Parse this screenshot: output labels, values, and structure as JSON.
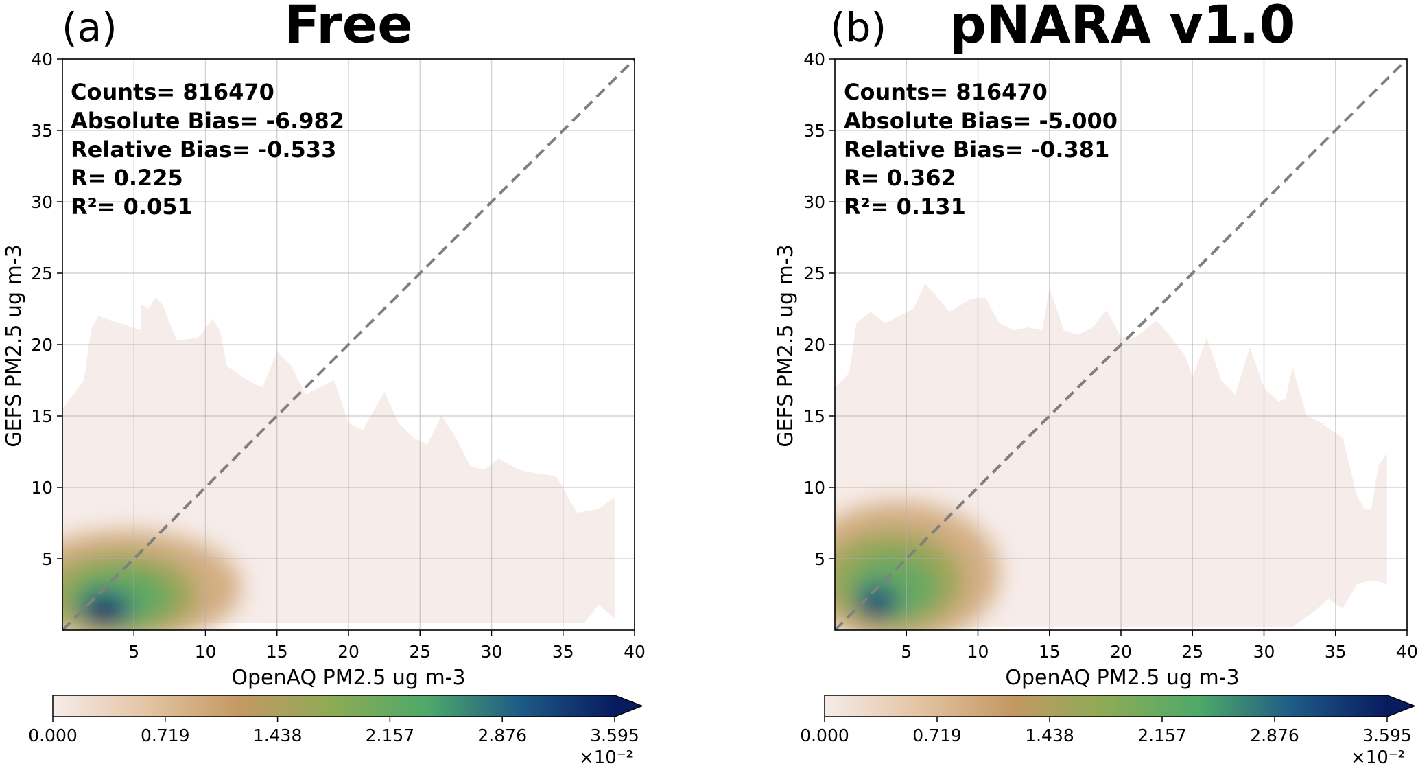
{
  "figure": {
    "colormap": [
      "#f6ece9",
      "#e3c4a3",
      "#c49863",
      "#8cab55",
      "#4ea86a",
      "#1e5a86",
      "#081b5f"
    ],
    "colorbar_ticks": [
      "0.000",
      "0.719",
      "1.438",
      "2.157",
      "2.876",
      "3.595"
    ],
    "colorbar_multiplier": "×10⁻²",
    "diag_color": "#808080"
  },
  "chart_data": [
    {
      "type": "heatmap",
      "panel_label": "(a)",
      "title": "Free",
      "xlabel": "OpenAQ PM2.5 ug m-3",
      "ylabel": "GEFS PM2.5 ug m-3",
      "xlim": [
        0,
        40
      ],
      "ylim": [
        0,
        40
      ],
      "xticks": [
        5,
        10,
        15,
        20,
        25,
        30,
        35,
        40
      ],
      "yticks": [
        5,
        10,
        15,
        20,
        25,
        30,
        35,
        40
      ],
      "grid": true,
      "one_to_one_line": true,
      "colorbar_range": [
        0,
        3.595
      ],
      "stats": [
        "Counts= 816470",
        "Absolute Bias= -6.982",
        "Relative Bias= -0.533",
        "R= 0.225",
        "R²= 0.051"
      ],
      "density_outline": [
        [
          0,
          15.5
        ],
        [
          1.5,
          17.5
        ],
        [
          2,
          21
        ],
        [
          2.5,
          22
        ],
        [
          4,
          21.5
        ],
        [
          5.5,
          21
        ],
        [
          5.5,
          22.8
        ],
        [
          6,
          22.5
        ],
        [
          6.5,
          23.3
        ],
        [
          7,
          22.8
        ],
        [
          7.5,
          21.5
        ],
        [
          8,
          20.3
        ],
        [
          9,
          20.4
        ],
        [
          9.5,
          20.5
        ],
        [
          10.5,
          21.8
        ],
        [
          11,
          21
        ],
        [
          11.5,
          18.5
        ],
        [
          12.5,
          17.8
        ],
        [
          13.5,
          17.2
        ],
        [
          14,
          17
        ],
        [
          15,
          19.5
        ],
        [
          16,
          18.5
        ],
        [
          17,
          16.5
        ],
        [
          18,
          17
        ],
        [
          19,
          17.5
        ],
        [
          20,
          14.5
        ],
        [
          21,
          14
        ],
        [
          22.5,
          16.7
        ],
        [
          23.5,
          14.5
        ],
        [
          24.5,
          13.5
        ],
        [
          25.5,
          13
        ],
        [
          26.5,
          15
        ],
        [
          27.5,
          13.5
        ],
        [
          28.5,
          11.5
        ],
        [
          29.5,
          11.2
        ],
        [
          30.5,
          12
        ],
        [
          32,
          11.2
        ],
        [
          33,
          11
        ],
        [
          34.5,
          10.8
        ],
        [
          35,
          10
        ],
        [
          35.5,
          9
        ],
        [
          36,
          8.2
        ],
        [
          37.5,
          8.5
        ],
        [
          38.6,
          9.3
        ],
        [
          38.6,
          0.8
        ],
        [
          37.5,
          1.8
        ],
        [
          36.5,
          0.5
        ],
        [
          0,
          0.5
        ]
      ],
      "density_cores": [
        {
          "x": 4.5,
          "y": 3.0,
          "rx": 8,
          "ry": 4,
          "level": 0.25
        },
        {
          "x": 4.0,
          "y": 2.5,
          "rx": 5.5,
          "ry": 3,
          "level": 0.45
        },
        {
          "x": 4.0,
          "y": 2.3,
          "rx": 3.6,
          "ry": 2,
          "level": 0.62
        },
        {
          "x": 3.0,
          "y": 1.5,
          "rx": 1.8,
          "ry": 1.2,
          "level": 0.85
        },
        {
          "x": 2.8,
          "y": 1.2,
          "rx": 0.8,
          "ry": 0.8,
          "level": 1.0
        }
      ]
    },
    {
      "type": "heatmap",
      "panel_label": "(b)",
      "title": "pNARA v1.0",
      "xlabel": "OpenAQ PM2.5 ug m-3",
      "ylabel": "GEFS PM2.5 ug m-3",
      "xlim": [
        0,
        40
      ],
      "ylim": [
        0,
        40
      ],
      "xticks": [
        5,
        10,
        15,
        20,
        25,
        30,
        35,
        40
      ],
      "yticks": [
        5,
        10,
        15,
        20,
        25,
        30,
        35,
        40
      ],
      "grid": true,
      "one_to_one_line": true,
      "colorbar_range": [
        0,
        3.595
      ],
      "stats": [
        "Counts= 816470",
        "Absolute Bias= -5.000",
        "Relative Bias= -0.381",
        "R= 0.362",
        "R²= 0.131"
      ],
      "density_outline": [
        [
          0,
          17
        ],
        [
          1,
          18
        ],
        [
          1.5,
          21.5
        ],
        [
          2.5,
          22.3
        ],
        [
          3.5,
          21.5
        ],
        [
          4.5,
          22
        ],
        [
          5.5,
          22.5
        ],
        [
          6.3,
          24.3
        ],
        [
          7,
          23.5
        ],
        [
          8,
          22.3
        ],
        [
          9.5,
          23.2
        ],
        [
          10.5,
          23.3
        ],
        [
          11.5,
          21.5
        ],
        [
          12.5,
          21
        ],
        [
          13.5,
          21.2
        ],
        [
          14.5,
          21
        ],
        [
          15,
          24
        ],
        [
          16,
          21
        ],
        [
          17,
          20.7
        ],
        [
          18,
          21.2
        ],
        [
          19,
          22.4
        ],
        [
          20,
          20.5
        ],
        [
          21,
          20.5
        ],
        [
          22.5,
          21.7
        ],
        [
          23.5,
          20.5
        ],
        [
          24.5,
          19.2
        ],
        [
          25,
          17.7
        ],
        [
          26,
          20.5
        ],
        [
          27,
          17.5
        ],
        [
          28,
          16.5
        ],
        [
          29,
          19.8
        ],
        [
          30,
          17
        ],
        [
          31,
          16
        ],
        [
          31.5,
          16.2
        ],
        [
          32,
          18.4
        ],
        [
          33,
          15
        ],
        [
          34,
          14.5
        ],
        [
          35,
          13.8
        ],
        [
          35.5,
          13.5
        ],
        [
          36.5,
          9.4
        ],
        [
          37,
          8.5
        ],
        [
          37.5,
          8.5
        ],
        [
          38,
          11.5
        ],
        [
          38.6,
          12.4
        ],
        [
          38.6,
          3.2
        ],
        [
          38,
          3.4
        ],
        [
          37.5,
          3.5
        ],
        [
          36.5,
          3.2
        ],
        [
          35.5,
          1.5
        ],
        [
          34.5,
          2.2
        ],
        [
          33.5,
          1.3
        ],
        [
          32,
          0.2
        ],
        [
          0,
          0.2
        ]
      ],
      "density_cores": [
        {
          "x": 4.5,
          "y": 4.0,
          "rx": 7,
          "ry": 5,
          "level": 0.25
        },
        {
          "x": 4.0,
          "y": 3.5,
          "rx": 5,
          "ry": 3.5,
          "level": 0.45
        },
        {
          "x": 4.0,
          "y": 3.0,
          "rx": 3.2,
          "ry": 2.4,
          "level": 0.6
        },
        {
          "x": 3.0,
          "y": 2.0,
          "rx": 1.5,
          "ry": 1.3,
          "level": 0.8
        },
        {
          "x": 2.8,
          "y": 1.6,
          "rx": 0.7,
          "ry": 0.7,
          "level": 0.95
        }
      ]
    }
  ]
}
